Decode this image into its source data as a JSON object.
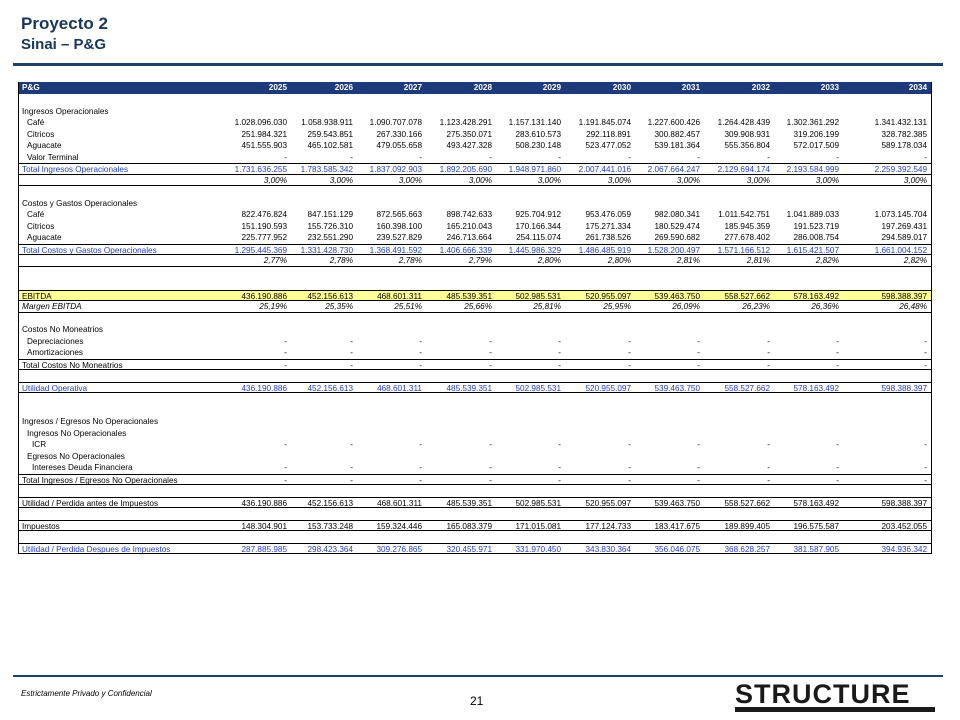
{
  "header": {
    "title": "Proyecto 2",
    "subtitle": "Sinai – P&G"
  },
  "table": {
    "corner_label": "P&G",
    "years": [
      "2025",
      "2026",
      "2027",
      "2028",
      "2029",
      "2030",
      "2031",
      "2032",
      "2033",
      "2034"
    ],
    "rows": [
      {
        "type": "header"
      },
      {
        "type": "blank"
      },
      {
        "type": "section",
        "label": "Ingresos Operacionales"
      },
      {
        "type": "item",
        "label": "Café",
        "values": [
          "1.028.096.030",
          "1.058.938.911",
          "1.090.707.078",
          "1.123.428.291",
          "1.157.131.140",
          "1.191.845.074",
          "1.227.600.426",
          "1.264.428.439",
          "1.302.361.292",
          "1.341.432.131"
        ]
      },
      {
        "type": "item",
        "label": "Citricos",
        "values": [
          "251.984.321",
          "259.543.851",
          "267.330.166",
          "275.350.071",
          "283.610.573",
          "292.118.891",
          "300.882.457",
          "309.908.931",
          "319.206.199",
          "328.782.385"
        ]
      },
      {
        "type": "item",
        "label": "Aguacate",
        "values": [
          "451.555.903",
          "465.102.581",
          "479.055.658",
          "493.427.328",
          "508.230.148",
          "523.477.052",
          "539.181.364",
          "555.356.804",
          "572.017.509",
          "589.178.034"
        ]
      },
      {
        "type": "item",
        "label": "Valor Terminal",
        "values": [
          "-",
          "-",
          "-",
          "-",
          "-",
          "-",
          "-",
          "-",
          "-",
          "-"
        ]
      },
      {
        "type": "total",
        "label": "Total Ingresos Operacionales",
        "values": [
          "1.731.636.255",
          "1.783.585.342",
          "1.837.092.903",
          "1.892.205.690",
          "1.948.971.860",
          "2.007.441.016",
          "2.067.664.247",
          "2.129.694.174",
          "2.193.584.999",
          "2.259.392.549"
        ]
      },
      {
        "type": "pct",
        "values": [
          "3,00%",
          "3,00%",
          "3,00%",
          "3,00%",
          "3,00%",
          "3,00%",
          "3,00%",
          "3,00%",
          "3,00%",
          "3,00%"
        ]
      },
      {
        "type": "blank"
      },
      {
        "type": "section",
        "label": "Costos y Gastos Operacionales"
      },
      {
        "type": "item",
        "label": "Café",
        "values": [
          "822.476.824",
          "847.151.129",
          "872.565.663",
          "898.742.633",
          "925.704.912",
          "953.476.059",
          "982.080.341",
          "1.011.542.751",
          "1.041.889.033",
          "1.073.145.704"
        ]
      },
      {
        "type": "item",
        "label": "Citricos",
        "values": [
          "151.190.593",
          "155.726.310",
          "160.398.100",
          "165.210.043",
          "170.166.344",
          "175.271.334",
          "180.529.474",
          "185.945.359",
          "191.523.719",
          "197.269.431"
        ]
      },
      {
        "type": "item",
        "label": "Aguacate",
        "values": [
          "225.777.952",
          "232.551.290",
          "239.527.829",
          "246.713.664",
          "254.115.074",
          "261.738.526",
          "269.590.682",
          "277.678.402",
          "286.008.754",
          "294.589.017"
        ]
      },
      {
        "type": "total",
        "label": "Total Costos y Gastos Operacionales",
        "values": [
          "1.295.445.369",
          "1.331.428.730",
          "1.368.491.592",
          "1.406.666.339",
          "1.445.986.329",
          "1.486.485.919",
          "1.528.200.497",
          "1.571.166.512",
          "1.615.421.507",
          "1.661.004.152"
        ]
      },
      {
        "type": "pct",
        "values": [
          "2,77%",
          "2,78%",
          "2,78%",
          "2,79%",
          "2,80%",
          "2,80%",
          "2,81%",
          "2,81%",
          "2,82%",
          "2,82%"
        ]
      },
      {
        "type": "blank"
      },
      {
        "type": "blank"
      },
      {
        "type": "ebitda",
        "label": "EBITDA",
        "values": [
          "436.190.886",
          "452.156.613",
          "468.601.311",
          "485.539.351",
          "502.985.531",
          "520.955.097",
          "539.463.750",
          "558.527.662",
          "578.163.492",
          "598.388.397"
        ]
      },
      {
        "type": "margin",
        "label": "Margen EBITDA",
        "values": [
          "25,19%",
          "25,35%",
          "25,51%",
          "25,66%",
          "25,81%",
          "25,95%",
          "26,09%",
          "26,23%",
          "26,36%",
          "26,48%"
        ]
      },
      {
        "type": "blank"
      },
      {
        "type": "section",
        "label": "Costos No Moneatrios"
      },
      {
        "type": "item",
        "label": "Depreciaciones",
        "values": [
          "-",
          "-",
          "-",
          "-",
          "-",
          "-",
          "-",
          "-",
          "-",
          "-"
        ]
      },
      {
        "type": "item",
        "label": "Amortizaciones",
        "values": [
          "-",
          "-",
          "-",
          "-",
          "-",
          "-",
          "-",
          "-",
          "-",
          "-"
        ]
      },
      {
        "type": "plaintotal",
        "label": "Total Costos No Moneatrios",
        "values": [
          "-",
          "-",
          "-",
          "-",
          "-",
          "-",
          "-",
          "-",
          "-",
          "-"
        ]
      },
      {
        "type": "blank"
      },
      {
        "type": "total",
        "label": "Utilidad Operativa",
        "values": [
          "436.190.886",
          "452.156.613",
          "468.601.311",
          "485.539.351",
          "502.985.531",
          "520.955.097",
          "539.463.750",
          "558.527.662",
          "578.163.492",
          "598.388.397"
        ]
      },
      {
        "type": "blank"
      },
      {
        "type": "blank"
      },
      {
        "type": "section",
        "label": "Ingresos / Egresos No Operacionales"
      },
      {
        "type": "item",
        "label": "Ingresos No Operacionales"
      },
      {
        "type": "item2",
        "label": "ICR",
        "values": [
          "-",
          "-",
          "-",
          "-",
          "-",
          "-",
          "-",
          "-",
          "-",
          "-"
        ]
      },
      {
        "type": "item",
        "label": "Egresos No Operacionales"
      },
      {
        "type": "item2",
        "label": "Intereses Deuda Financiera",
        "values": [
          "-",
          "-",
          "-",
          "-",
          "-",
          "-",
          "-",
          "-",
          "-",
          "-"
        ]
      },
      {
        "type": "plaintotal",
        "label": "Total Ingresos / Egresos No Operacionales",
        "values": [
          "-",
          "-",
          "-",
          "-",
          "-",
          "-",
          "-",
          "-",
          "-",
          "-"
        ]
      },
      {
        "type": "blank"
      },
      {
        "type": "plaintotal",
        "label": "Utilidad / Perdida antes de Impuestos",
        "values": [
          "436.190.886",
          "452.156.613",
          "468.601.311",
          "485.539.351",
          "502.985.531",
          "520.955.097",
          "539.463.750",
          "558.527.662",
          "578.163.492",
          "598.388.397"
        ]
      },
      {
        "type": "blank"
      },
      {
        "type": "plaintotal",
        "label": "Impuestos",
        "values": [
          "148.304.901",
          "153.733.248",
          "159.324.446",
          "165.083.379",
          "171.015.081",
          "177.124.733",
          "183.417.675",
          "189.899.405",
          "196.575.587",
          "203.452.055"
        ]
      },
      {
        "type": "blank"
      },
      {
        "type": "total",
        "label": "Utilidad / Perdida Despues de Impuestos",
        "values": [
          "287.885.985",
          "298.423.364",
          "309.276.865",
          "320.455.971",
          "331.970.450",
          "343.830.364",
          "356.046.075",
          "368.628.257",
          "381.587.905",
          "394.936.342"
        ]
      }
    ]
  },
  "footer": {
    "note": "Estrictamente Privado y Confidencial",
    "page": "21",
    "logo_text": "STRUCTURE"
  },
  "colors": {
    "navy": "#1d3a7a",
    "total_blue": "#1f3fb8",
    "ebitda_yellow": "#ffff99",
    "title_blue": "#17365d"
  }
}
